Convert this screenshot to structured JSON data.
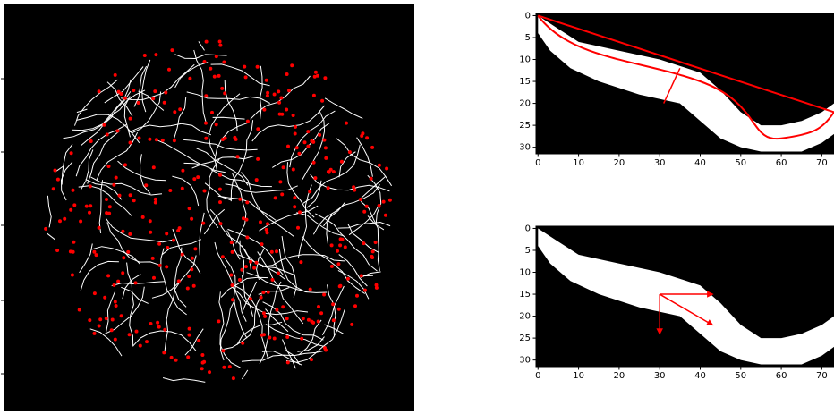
{
  "chart_data": [
    {
      "type": "image",
      "xlim": [
        -0.5,
        73
      ],
      "ylim": [
        31.5,
        -0.5
      ],
      "xticks": [
        0,
        10,
        20,
        30,
        40,
        50,
        60,
        70
      ],
      "yticks": [
        0,
        5,
        10,
        15,
        20,
        25,
        30
      ]
    },
    {
      "type": "image",
      "xlim": [
        -0.5,
        73
      ],
      "ylim": [
        31.5,
        -0.5
      ],
      "xticks": [
        0,
        10,
        20,
        30,
        40,
        50,
        60,
        70
      ],
      "yticks": [
        0,
        5,
        10,
        15,
        20,
        25,
        30
      ]
    }
  ]
}
